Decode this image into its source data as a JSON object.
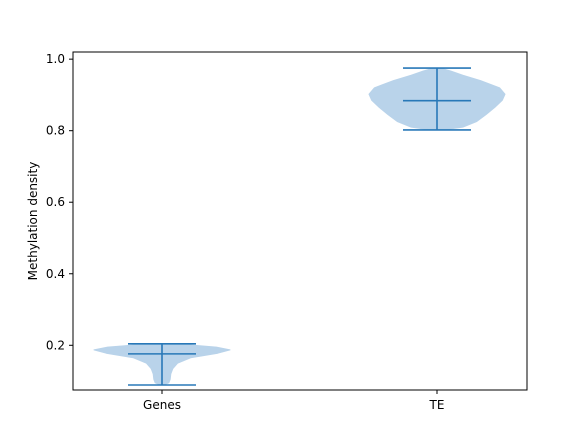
{
  "chart_data": {
    "type": "violin",
    "title": "",
    "xlabel": "",
    "ylabel": "Methylation density",
    "categories": [
      "Genes",
      "TE"
    ],
    "ylim": [
      0.075,
      1.02
    ],
    "yticks": [
      0.2,
      0.4,
      0.6,
      0.8,
      1.0
    ],
    "ytick_labels": [
      "0.2",
      "0.4",
      "0.6",
      "0.8",
      "1.0"
    ],
    "grid": false,
    "colors": {
      "body": "#b9d3ea",
      "stats": "#2878b8",
      "axes": "#000000"
    },
    "violins": [
      {
        "category": "Genes",
        "min": 0.089,
        "median": 0.176,
        "max": 0.204,
        "density": [
          [
            0.089,
            0.02
          ],
          [
            0.095,
            0.1
          ],
          [
            0.105,
            0.12
          ],
          [
            0.12,
            0.13
          ],
          [
            0.135,
            0.16
          ],
          [
            0.15,
            0.23
          ],
          [
            0.165,
            0.42
          ],
          [
            0.178,
            0.82
          ],
          [
            0.187,
            1.0
          ],
          [
            0.195,
            0.8
          ],
          [
            0.201,
            0.4
          ],
          [
            0.204,
            0.06
          ]
        ]
      },
      {
        "category": "TE",
        "min": 0.802,
        "median": 0.884,
        "max": 0.975,
        "density": [
          [
            0.802,
            0.08
          ],
          [
            0.81,
            0.38
          ],
          [
            0.825,
            0.58
          ],
          [
            0.845,
            0.72
          ],
          [
            0.865,
            0.85
          ],
          [
            0.885,
            0.96
          ],
          [
            0.902,
            1.0
          ],
          [
            0.92,
            0.92
          ],
          [
            0.94,
            0.64
          ],
          [
            0.955,
            0.38
          ],
          [
            0.967,
            0.2
          ],
          [
            0.975,
            0.05
          ]
        ]
      }
    ]
  }
}
